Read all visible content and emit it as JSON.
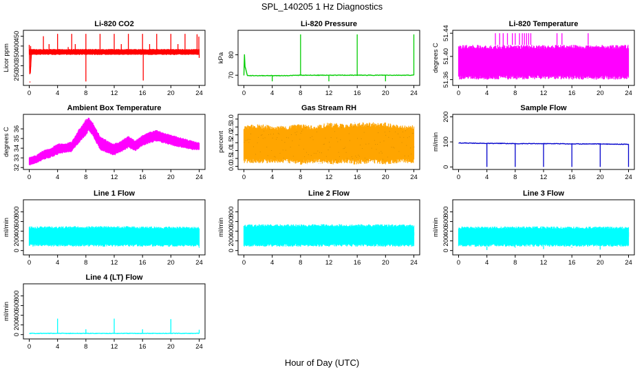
{
  "title": "SPL_140205  1 Hz Diagnostics",
  "xlabel": "Hour of Day (UTC)",
  "chart_data": [
    {
      "type": "line",
      "title": "Li-820 CO2",
      "ylabel": "Licor ppm",
      "color": "#ff0000",
      "xlim": [
        0,
        24
      ],
      "ylim": [
        200,
        480
      ],
      "xticks": [
        "0",
        "4",
        "8",
        "12",
        "16",
        "20",
        "24"
      ],
      "yticks": [
        "250",
        "300",
        "350",
        "400",
        "450"
      ],
      "band": [
        [
          0,
          355,
          385
        ],
        [
          24,
          355,
          385
        ]
      ],
      "series": [
        {
          "x": [
            0,
            0.1,
            0.3,
            2,
            4,
            6,
            8,
            10,
            12,
            14,
            16,
            18,
            20,
            22,
            24
          ],
          "values": [
            405,
            220,
            370,
            368,
            368,
            368,
            366,
            368,
            368,
            368,
            366,
            366,
            366,
            366,
            360
          ]
        }
      ],
      "spikes": [
        [
          0.1,
          215
        ],
        [
          0.2,
          400
        ],
        [
          2.0,
          450
        ],
        [
          2.8,
          410
        ],
        [
          4.0,
          462
        ],
        [
          5.5,
          395
        ],
        [
          6.0,
          462
        ],
        [
          6.5,
          410
        ],
        [
          8.0,
          462
        ],
        [
          8.0,
          220
        ],
        [
          10.0,
          462
        ],
        [
          12.0,
          462
        ],
        [
          13.0,
          410
        ],
        [
          14.0,
          462
        ],
        [
          16.0,
          462
        ],
        [
          16.1,
          225
        ],
        [
          17.0,
          410
        ],
        [
          18.0,
          462
        ],
        [
          20.0,
          462
        ],
        [
          21.0,
          410
        ],
        [
          22.0,
          462
        ],
        [
          23.7,
          460
        ],
        [
          23.95,
          448
        ],
        [
          24.0,
          340
        ]
      ]
    },
    {
      "type": "line",
      "title": "Li-820 Pressure",
      "ylabel": "kPa",
      "color": "#00cc00",
      "xlim": [
        0,
        24
      ],
      "ylim": [
        65,
        92
      ],
      "xticks": [
        "0",
        "4",
        "8",
        "12",
        "16",
        "20",
        "24"
      ],
      "yticks": [
        "70",
        "80"
      ],
      "band": [],
      "series": [
        {
          "x": [
            0,
            0.05,
            0.1,
            0.5,
            2,
            4,
            6,
            8,
            10,
            12,
            14,
            16,
            18,
            20,
            22,
            24
          ],
          "values": [
            70,
            88,
            75,
            69.8,
            69.8,
            69.8,
            69.8,
            70,
            70,
            70,
            70,
            70,
            70,
            70,
            70,
            70
          ]
        }
      ],
      "spikes": [
        [
          4.0,
          67
        ],
        [
          8.0,
          90
        ],
        [
          12.0,
          67
        ],
        [
          16.0,
          90
        ],
        [
          20.0,
          67
        ],
        [
          24.0,
          90
        ]
      ]
    },
    {
      "type": "area",
      "title": "Li-820 Temperature",
      "ylabel": "degrees C",
      "color": "#ff00ff",
      "xlim": [
        0,
        24
      ],
      "ylim": [
        51.35,
        51.445
      ],
      "xticks": [
        "0",
        "4",
        "8",
        "12",
        "16",
        "20",
        "24"
      ],
      "yticks": [
        "51.36",
        "51.40",
        "51.44"
      ],
      "band": [
        [
          0,
          51.36,
          51.42
        ],
        [
          24,
          51.36,
          51.42
        ]
      ],
      "series": [],
      "spikes": [
        [
          5.2,
          51.44
        ],
        [
          5.8,
          51.44
        ],
        [
          6.3,
          51.44
        ],
        [
          6.9,
          51.44
        ],
        [
          7.6,
          51.44
        ],
        [
          8.0,
          51.44
        ],
        [
          8.6,
          51.44
        ],
        [
          9.0,
          51.44
        ],
        [
          9.3,
          51.44
        ],
        [
          9.6,
          51.44
        ],
        [
          9.9,
          51.44
        ],
        [
          10.2,
          51.44
        ],
        [
          13.9,
          51.44
        ],
        [
          14.6,
          51.44
        ],
        [
          18.3,
          51.44
        ]
      ]
    },
    {
      "type": "line",
      "title": "Ambient Box Temperature",
      "ylabel": "degrees C",
      "color": "#ff00ff",
      "xlim": [
        0,
        24
      ],
      "ylim": [
        31.8,
        37.5
      ],
      "xticks": [
        "0",
        "4",
        "8",
        "12",
        "16",
        "20",
        "24"
      ],
      "yticks": [
        "32",
        "33",
        "34",
        "35",
        "36"
      ],
      "band": [
        [
          0,
          32.2,
          33.1
        ],
        [
          1,
          32.4,
          33.3
        ],
        [
          2,
          32.8,
          33.8
        ],
        [
          3,
          33.0,
          34.0
        ],
        [
          4,
          33.3,
          34.5
        ],
        [
          5,
          33.5,
          34.5
        ],
        [
          6,
          33.6,
          34.7
        ],
        [
          7,
          34.5,
          36.0
        ],
        [
          8,
          35.3,
          37.0
        ],
        [
          8.4,
          35.8,
          37.2
        ],
        [
          9,
          35.2,
          36.7
        ],
        [
          10,
          33.8,
          35.3
        ],
        [
          11,
          33.5,
          34.8
        ],
        [
          12,
          33.2,
          34.5
        ],
        [
          13,
          33.6,
          34.8
        ],
        [
          14,
          34.0,
          35.3
        ],
        [
          15,
          33.7,
          34.8
        ],
        [
          16,
          34.2,
          35.4
        ],
        [
          17,
          34.5,
          35.7
        ],
        [
          18,
          34.7,
          35.9
        ],
        [
          19,
          34.5,
          35.6
        ],
        [
          20,
          34.3,
          35.4
        ],
        [
          21,
          34.1,
          35.2
        ],
        [
          22,
          34.0,
          35.0
        ],
        [
          23,
          33.8,
          34.8
        ],
        [
          24,
          33.8,
          34.6
        ]
      ],
      "series": [],
      "spikes": []
    },
    {
      "type": "scatter",
      "title": "Gas Stream RH",
      "ylabel": "percent",
      "color": "#ffa500",
      "xlim": [
        0,
        24
      ],
      "ylim": [
        -0.2,
        3.3
      ],
      "xticks": [
        "0",
        "4",
        "8",
        "12",
        "16",
        "20",
        "24"
      ],
      "yticks": [
        "0.0",
        "0.5",
        "1.0",
        "1.5",
        "2.0",
        "2.5",
        "3.0"
      ],
      "band": [
        [
          0,
          0.2,
          2.6
        ],
        [
          2,
          0.2,
          2.7
        ],
        [
          4,
          0.2,
          2.6
        ],
        [
          6,
          0.2,
          2.6
        ],
        [
          8,
          0.1,
          2.7
        ],
        [
          10,
          0.2,
          2.6
        ],
        [
          12,
          0.1,
          2.8
        ],
        [
          14,
          0.2,
          2.7
        ],
        [
          16,
          0.1,
          2.8
        ],
        [
          18,
          0.2,
          2.8
        ],
        [
          20,
          0.1,
          2.8
        ],
        [
          22,
          0.2,
          2.6
        ],
        [
          24,
          0.2,
          2.6
        ]
      ],
      "series": [],
      "spikes": []
    },
    {
      "type": "line",
      "title": "Sample Flow",
      "ylabel": "ml/min",
      "color": "#0000cc",
      "xlim": [
        0,
        24
      ],
      "ylim": [
        -10,
        210
      ],
      "xticks": [
        "0",
        "4",
        "8",
        "12",
        "16",
        "20",
        "24"
      ],
      "yticks": [
        "0",
        "100",
        "200"
      ],
      "band": [],
      "series": [
        {
          "x": [
            0,
            2,
            4,
            6,
            8,
            10,
            12,
            14,
            16,
            18,
            20,
            22,
            24
          ],
          "values": [
            96,
            95,
            94,
            94,
            93,
            93,
            93,
            93,
            92,
            92,
            92,
            91,
            91
          ]
        }
      ],
      "spikes": [
        [
          4.0,
          0
        ],
        [
          8.0,
          0
        ],
        [
          12.0,
          0
        ],
        [
          16.0,
          0
        ],
        [
          20.0,
          0
        ],
        [
          24.0,
          0
        ]
      ]
    },
    {
      "type": "area",
      "title": "Line 1 Flow",
      "ylabel": "ml/min",
      "color": "#00ffff",
      "xlim": [
        0,
        24
      ],
      "ylim": [
        -90,
        1050
      ],
      "xticks": [
        "0",
        "4",
        "8",
        "12",
        "16",
        "20",
        "24"
      ],
      "yticks": [
        "0",
        "200",
        "400",
        "600",
        "800"
      ],
      "band": [
        [
          0,
          80,
          500
        ],
        [
          4,
          80,
          500
        ],
        [
          8,
          80,
          505
        ],
        [
          12,
          80,
          505
        ],
        [
          16,
          80,
          500
        ],
        [
          20,
          80,
          495
        ],
        [
          24,
          80,
          490
        ]
      ],
      "series": [],
      "spikes": [
        [
          4.0,
          130
        ],
        [
          8.0,
          120
        ],
        [
          12.0,
          120
        ],
        [
          16.0,
          120
        ],
        [
          20.0,
          120
        ],
        [
          24.0,
          60
        ]
      ]
    },
    {
      "type": "area",
      "title": "Line 2 Flow",
      "ylabel": "ml/min",
      "color": "#00ffff",
      "xlim": [
        0,
        24
      ],
      "ylim": [
        -90,
        1050
      ],
      "xticks": [
        "0",
        "4",
        "8",
        "12",
        "16",
        "20",
        "24"
      ],
      "yticks": [
        "0",
        "200",
        "400",
        "600",
        "800"
      ],
      "band": [
        [
          0,
          80,
          540
        ],
        [
          4,
          80,
          545
        ],
        [
          8,
          80,
          545
        ],
        [
          12,
          80,
          545
        ],
        [
          16,
          80,
          545
        ],
        [
          20,
          80,
          545
        ],
        [
          24,
          80,
          540
        ]
      ],
      "series": [],
      "spikes": [
        [
          4.0,
          80
        ],
        [
          8.0,
          80
        ],
        [
          12.0,
          80
        ],
        [
          16.0,
          80
        ],
        [
          20.0,
          80
        ],
        [
          24.0,
          380
        ]
      ]
    },
    {
      "type": "area",
      "title": "Line 3 Flow",
      "ylabel": "ml/min",
      "color": "#00ffff",
      "xlim": [
        0,
        24
      ],
      "ylim": [
        -90,
        1050
      ],
      "xticks": [
        "0",
        "4",
        "8",
        "12",
        "16",
        "20",
        "24"
      ],
      "yticks": [
        "0",
        "200",
        "400",
        "600",
        "800"
      ],
      "band": [
        [
          0,
          80,
          495
        ],
        [
          4,
          80,
          500
        ],
        [
          8,
          80,
          500
        ],
        [
          12,
          80,
          500
        ],
        [
          16,
          80,
          495
        ],
        [
          20,
          80,
          495
        ],
        [
          24,
          80,
          490
        ]
      ],
      "series": [],
      "spikes": [
        [
          4.0,
          10
        ],
        [
          8.0,
          60
        ],
        [
          12.0,
          30
        ],
        [
          16.0,
          60
        ],
        [
          20.0,
          20
        ],
        [
          24.0,
          380
        ]
      ]
    },
    {
      "type": "line",
      "title": "Line 4 (LT) Flow",
      "ylabel": "ml/min",
      "color": "#00ffff",
      "xlim": [
        0,
        24
      ],
      "ylim": [
        -90,
        1050
      ],
      "xticks": [
        "0",
        "4",
        "8",
        "12",
        "16",
        "20",
        "24"
      ],
      "yticks": [
        "0",
        "200",
        "400",
        "600",
        "800"
      ],
      "band": [],
      "series": [
        {
          "x": [
            0,
            4,
            8,
            12,
            16,
            20,
            24
          ],
          "values": [
            25,
            25,
            25,
            25,
            25,
            25,
            25
          ]
        }
      ],
      "spikes": [
        [
          4.0,
          330
        ],
        [
          8.0,
          110
        ],
        [
          12.0,
          330
        ],
        [
          16.0,
          110
        ],
        [
          20.0,
          320
        ],
        [
          24.0,
          100
        ]
      ]
    }
  ]
}
